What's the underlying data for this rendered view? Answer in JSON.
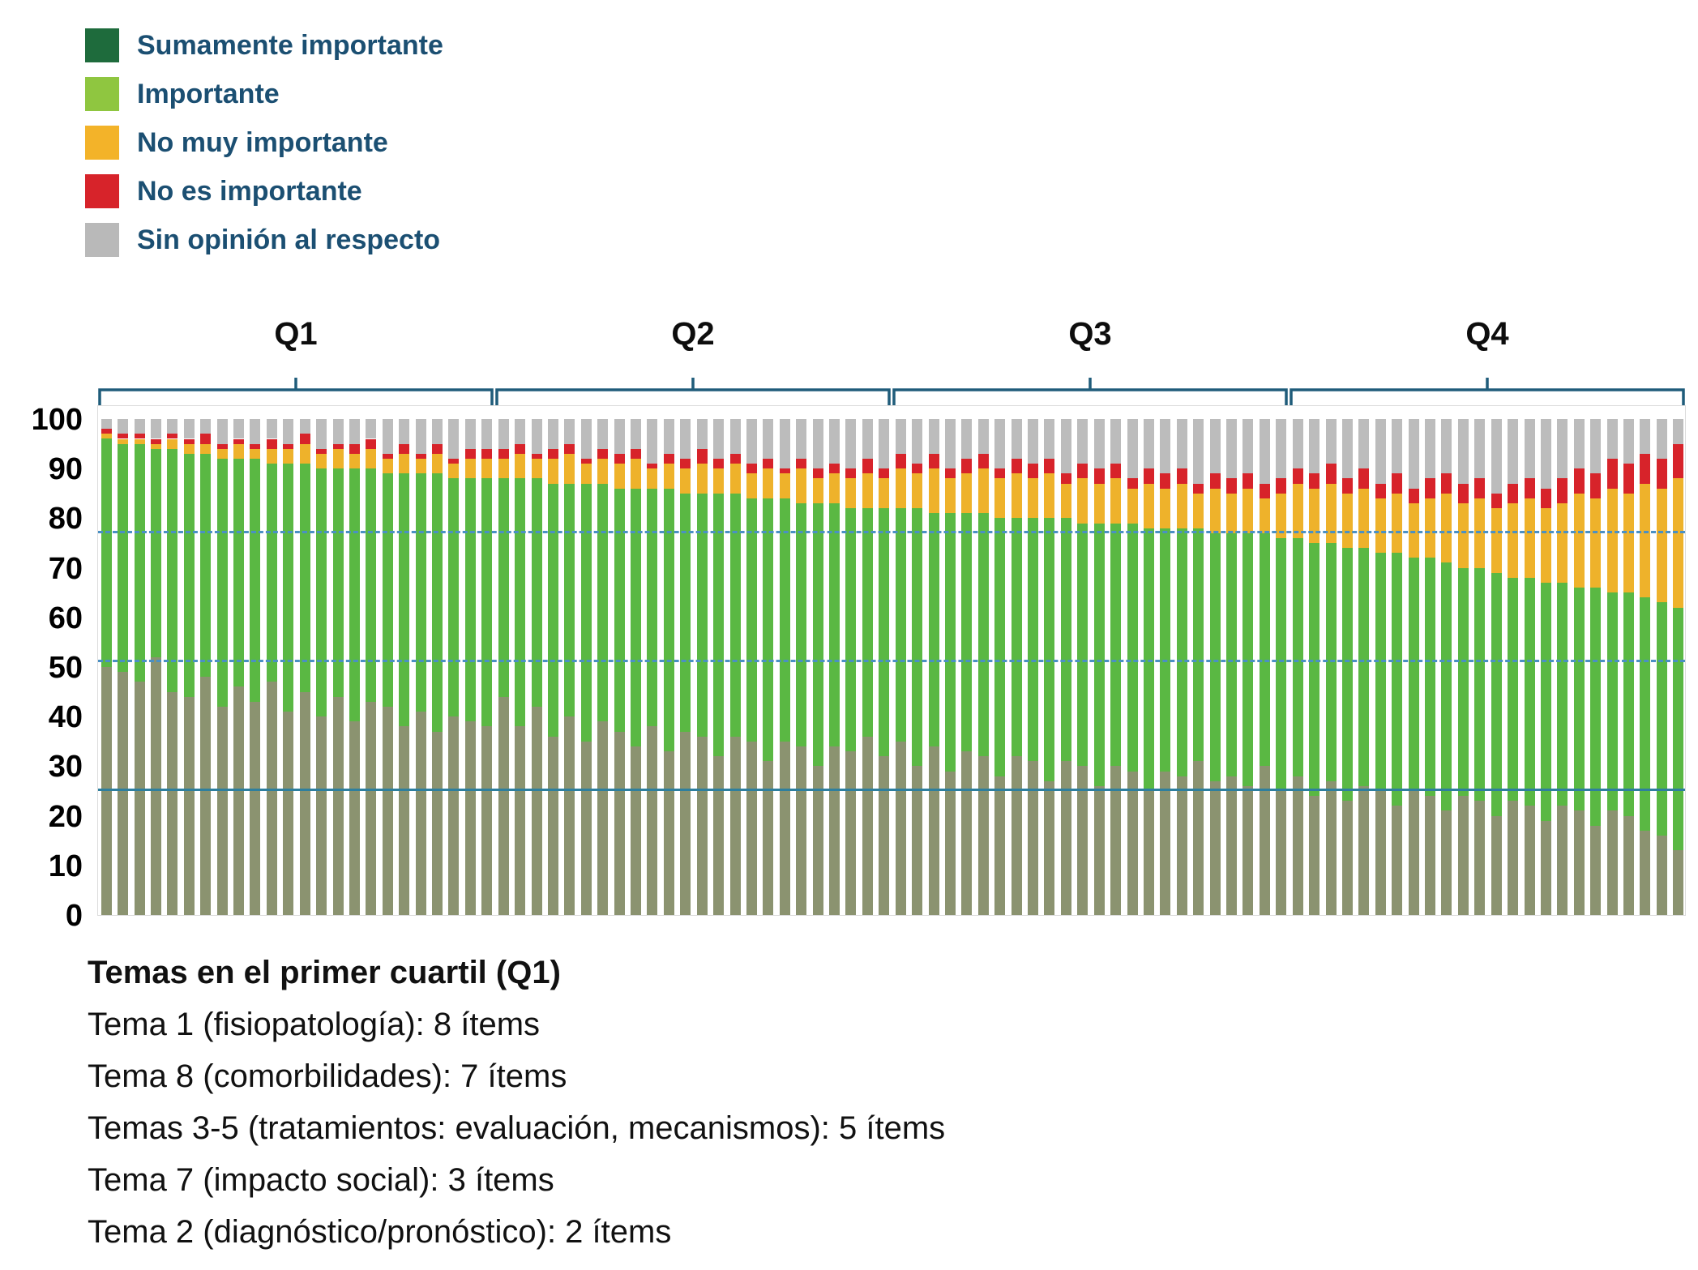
{
  "notes": {
    "title": "Temas en el primer cuartil (Q1)",
    "lines": [
      "Tema 1 (fisiopatología): 8 ítems",
      "Tema 8 (comorbilidades): 7 ítems",
      "Temas 3-5 (tratamientos: evaluación, mecanismos): 5 ítems",
      "Tema 7 (impacto social): 3 ítems",
      "Tema 2 (diagnóstico/pronóstico): 2 ítems"
    ]
  },
  "chart_data": {
    "type": "bar",
    "stacked": true,
    "unit": "percent",
    "ylim": [
      0,
      100
    ],
    "yticks": [
      0,
      10,
      20,
      30,
      40,
      50,
      60,
      70,
      80,
      90,
      100
    ],
    "grid": false,
    "legend_position": "top-left",
    "legend": [
      {
        "key": "sumamente_importante",
        "label": "Sumamente importante",
        "color": "#1e6b3c"
      },
      {
        "key": "importante",
        "label": "Importante",
        "color": "#8fc640"
      },
      {
        "key": "no_muy_importante",
        "label": "No muy importante",
        "color": "#f3b329"
      },
      {
        "key": "no_es_importante",
        "label": "No es importante",
        "color": "#d7232a"
      },
      {
        "key": "sin_opinion",
        "label": "Sin opinión al respecto",
        "color": "#b9b9b9"
      }
    ],
    "segment_keys": [
      "sumamente_importante",
      "importante",
      "no_muy_importante",
      "no_es_importante",
      "sin_opinion"
    ],
    "bar_colors": [
      "#8b9370",
      "#5ab843",
      "#eeb22b",
      "#d7232a",
      "#bcbcbc"
    ],
    "bracket_color": "#1f5c7a",
    "quartiles": [
      {
        "label": "Q1",
        "bars": 24
      },
      {
        "label": "Q2",
        "bars": 24
      },
      {
        "label": "Q3",
        "bars": 24
      },
      {
        "label": "Q4",
        "bars": 24
      }
    ],
    "reference_lines": [
      {
        "y": 77,
        "style": "dashed",
        "color": "#4a90c4"
      },
      {
        "y": 51,
        "style": "dashed",
        "color": "#4a90c4"
      },
      {
        "y": 25,
        "style": "solid",
        "color": "#2e7f9e"
      }
    ],
    "stacking_note": "values are cumulative stack tops per bar, in percent; total of each bar is 100",
    "bars": {
      "total": 100,
      "sumamente_top": [
        50,
        49,
        47,
        52,
        45,
        44,
        48,
        42,
        46,
        43,
        47,
        41,
        45,
        40,
        44,
        39,
        43,
        42,
        38,
        41,
        37,
        40,
        39,
        38,
        44,
        38,
        42,
        36,
        40,
        35,
        39,
        37,
        34,
        38,
        33,
        37,
        36,
        32,
        36,
        35,
        31,
        35,
        34,
        30,
        34,
        33,
        36,
        32,
        35,
        30,
        34,
        29,
        33,
        32,
        28,
        32,
        31,
        27,
        31,
        30,
        26,
        30,
        29,
        25,
        29,
        28,
        31,
        27,
        28,
        26,
        30,
        25,
        28,
        24,
        27,
        23,
        26,
        25,
        22,
        25,
        24,
        21,
        24,
        23,
        20,
        23,
        22,
        19,
        22,
        21,
        18,
        21,
        20,
        17,
        16,
        13
      ],
      "importante_top": [
        96,
        95,
        95,
        94,
        94,
        93,
        93,
        92,
        92,
        92,
        91,
        91,
        91,
        90,
        90,
        90,
        90,
        89,
        89,
        89,
        89,
        88,
        88,
        88,
        88,
        88,
        88,
        87,
        87,
        87,
        87,
        86,
        86,
        86,
        86,
        85,
        85,
        85,
        85,
        84,
        84,
        84,
        83,
        83,
        83,
        82,
        82,
        82,
        82,
        82,
        81,
        81,
        81,
        81,
        80,
        80,
        80,
        80,
        80,
        79,
        79,
        79,
        79,
        78,
        78,
        78,
        78,
        77,
        77,
        77,
        77,
        76,
        76,
        75,
        75,
        74,
        74,
        73,
        73,
        72,
        72,
        71,
        70,
        70,
        69,
        68,
        68,
        67,
        67,
        66,
        66,
        65,
        65,
        64,
        63,
        62
      ],
      "no_muy_importante_top": [
        97,
        96,
        96,
        95,
        96,
        95,
        95,
        94,
        95,
        94,
        94,
        94,
        95,
        93,
        94,
        93,
        94,
        92,
        93,
        92,
        93,
        91,
        92,
        92,
        92,
        93,
        92,
        92,
        93,
        91,
        92,
        91,
        92,
        90,
        91,
        90,
        91,
        90,
        91,
        89,
        90,
        89,
        90,
        88,
        89,
        88,
        89,
        88,
        90,
        89,
        90,
        88,
        89,
        90,
        88,
        89,
        88,
        89,
        87,
        88,
        87,
        88,
        86,
        87,
        86,
        87,
        85,
        86,
        85,
        86,
        84,
        85,
        87,
        86,
        87,
        85,
        86,
        84,
        85,
        83,
        84,
        85,
        83,
        84,
        82,
        83,
        84,
        82,
        83,
        85,
        84,
        86,
        85,
        87,
        86,
        88
      ],
      "no_es_importante_top": [
        98,
        97,
        97,
        96,
        97,
        96,
        97,
        95,
        96,
        95,
        96,
        95,
        97,
        94,
        95,
        95,
        96,
        93,
        95,
        93,
        95,
        92,
        94,
        94,
        94,
        95,
        93,
        94,
        95,
        92,
        94,
        93,
        94,
        91,
        93,
        92,
        94,
        92,
        93,
        91,
        92,
        90,
        92,
        90,
        91,
        90,
        92,
        90,
        93,
        91,
        93,
        90,
        92,
        93,
        90,
        92,
        91,
        92,
        89,
        91,
        90,
        91,
        88,
        90,
        89,
        90,
        87,
        89,
        88,
        89,
        87,
        88,
        90,
        89,
        91,
        88,
        90,
        87,
        89,
        86,
        88,
        89,
        87,
        88,
        85,
        87,
        88,
        86,
        88,
        90,
        89,
        92,
        91,
        93,
        92,
        95
      ]
    }
  }
}
